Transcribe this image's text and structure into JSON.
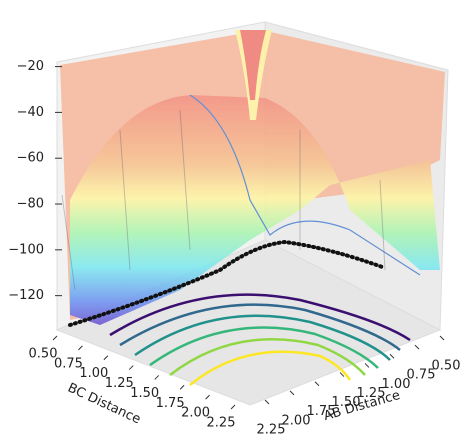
{
  "chart_data": {
    "type": "surface3d",
    "xlabel": "AB Distance",
    "ylabel": "BC Distance",
    "xlim": [
      0.5,
      2.25
    ],
    "ylim": [
      0.5,
      2.25
    ],
    "zlim": [
      -135,
      -18
    ],
    "xticks": [
      {
        "value": 0.5,
        "label": "0.50"
      },
      {
        "value": 0.75,
        "label": "0.75"
      },
      {
        "value": 1.0,
        "label": "1.00"
      },
      {
        "value": 1.25,
        "label": "1.25"
      },
      {
        "value": 1.5,
        "label": "1.50"
      },
      {
        "value": 1.75,
        "label": "1.75"
      },
      {
        "value": 2.0,
        "label": "2.00"
      },
      {
        "value": 2.25,
        "label": "2.25"
      }
    ],
    "yticks": [
      {
        "value": 0.5,
        "label": "0.50"
      },
      {
        "value": 0.75,
        "label": "0.75"
      },
      {
        "value": 1.0,
        "label": "1.00"
      },
      {
        "value": 1.25,
        "label": "1.25"
      },
      {
        "value": 1.5,
        "label": "1.50"
      },
      {
        "value": 1.75,
        "label": "1.75"
      },
      {
        "value": 2.0,
        "label": "2.00"
      },
      {
        "value": 2.25,
        "label": "2.25"
      }
    ],
    "zticks": [
      {
        "value": -20,
        "label": "−20"
      },
      {
        "value": -40,
        "label": "−40"
      },
      {
        "value": -60,
        "label": "−60"
      },
      {
        "value": -80,
        "label": "−80"
      },
      {
        "value": -100,
        "label": "−100"
      },
      {
        "value": -120,
        "label": "−120"
      }
    ]
  }
}
